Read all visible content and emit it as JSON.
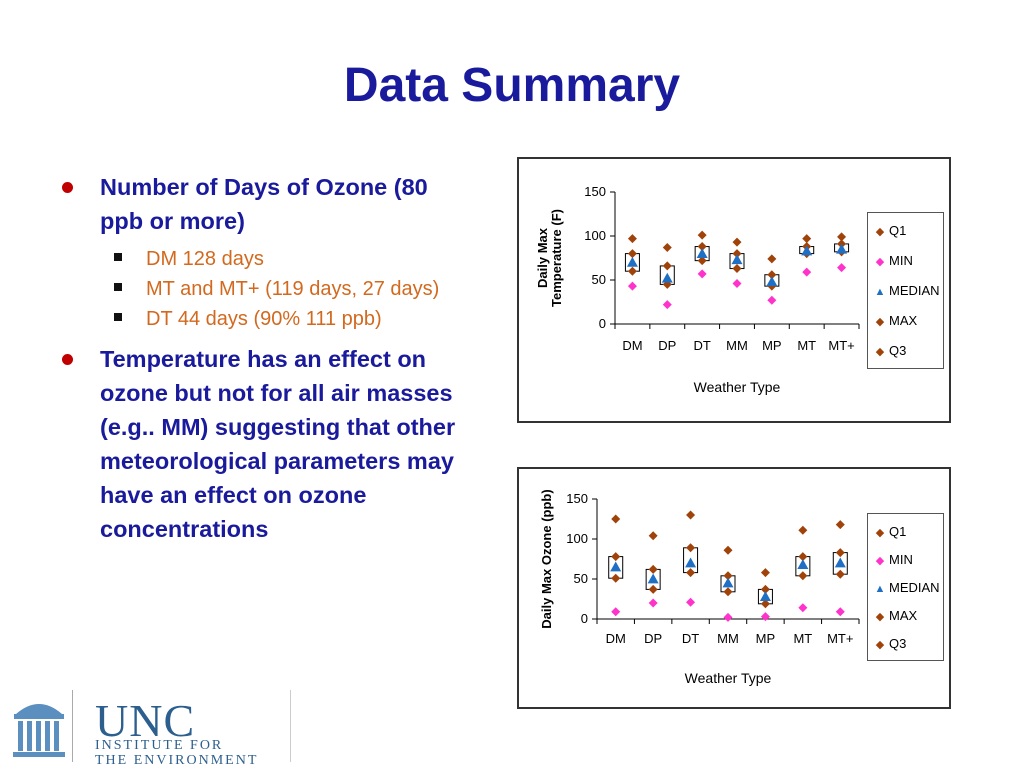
{
  "slide": {
    "title": "Data Summary",
    "bullets": [
      {
        "text": "Number of Days of Ozone (80 ppb or more)",
        "sub": [
          "DM 128 days",
          "MT and MT+ (119 days, 27 days)",
          "DT 44 days (90% 111 ppb)"
        ]
      },
      {
        "text": "Temperature has an effect on ozone but not for all air masses (e.g.. MM) suggesting that other meteorological parameters may have an effect on ozone concentrations",
        "sub": []
      }
    ]
  },
  "colors": {
    "title": "#1a1a9c",
    "sub_text": "#d2691e",
    "bullet_dot": "#c00000",
    "q1_max_q3": "#a0430a",
    "min": "#ff33cc",
    "median": "#1f6fc5"
  },
  "legend": [
    "Q1",
    "MIN",
    "MEDIAN",
    "MAX",
    "Q3"
  ],
  "chart_data": [
    {
      "type": "scatter",
      "title": "",
      "xlabel": "Weather Type",
      "ylabel": "Daily Max Temperature (F)",
      "ylim": [
        0,
        150
      ],
      "yticks": [
        0,
        50,
        100,
        150
      ],
      "categories": [
        "DM",
        "DP",
        "DT",
        "MM",
        "MP",
        "MT",
        "MT+"
      ],
      "legend_position": "right",
      "series": [
        {
          "name": "Q1",
          "values": [
            60,
            45,
            72,
            63,
            43,
            80,
            82
          ]
        },
        {
          "name": "MIN",
          "values": [
            43,
            22,
            57,
            46,
            27,
            59,
            64
          ]
        },
        {
          "name": "MEDIAN",
          "values": [
            70,
            52,
            80,
            73,
            48,
            83,
            85
          ]
        },
        {
          "name": "MAX",
          "values": [
            97,
            87,
            101,
            93,
            74,
            97,
            99
          ]
        },
        {
          "name": "Q3",
          "values": [
            80,
            66,
            88,
            80,
            56,
            88,
            91
          ]
        }
      ]
    },
    {
      "type": "scatter",
      "title": "",
      "xlabel": "Weather Type",
      "ylabel": "Daily Max Ozone (ppb)",
      "ylim": [
        0,
        150
      ],
      "yticks": [
        0,
        50,
        100,
        150
      ],
      "categories": [
        "DM",
        "DP",
        "DT",
        "MM",
        "MP",
        "MT",
        "MT+"
      ],
      "legend_position": "right",
      "series": [
        {
          "name": "Q1",
          "values": [
            51,
            37,
            58,
            34,
            19,
            54,
            56
          ]
        },
        {
          "name": "MIN",
          "values": [
            9,
            20,
            21,
            2,
            3,
            14,
            9
          ]
        },
        {
          "name": "MEDIAN",
          "values": [
            65,
            50,
            70,
            45,
            28,
            68,
            70
          ]
        },
        {
          "name": "MAX",
          "values": [
            125,
            104,
            130,
            86,
            58,
            111,
            118
          ]
        },
        {
          "name": "Q3",
          "values": [
            78,
            62,
            89,
            54,
            37,
            78,
            83
          ]
        }
      ]
    }
  ],
  "logo": {
    "name": "UNC",
    "line1": "INSTITUTE FOR",
    "line2": "THE ENVIRONMENT"
  }
}
